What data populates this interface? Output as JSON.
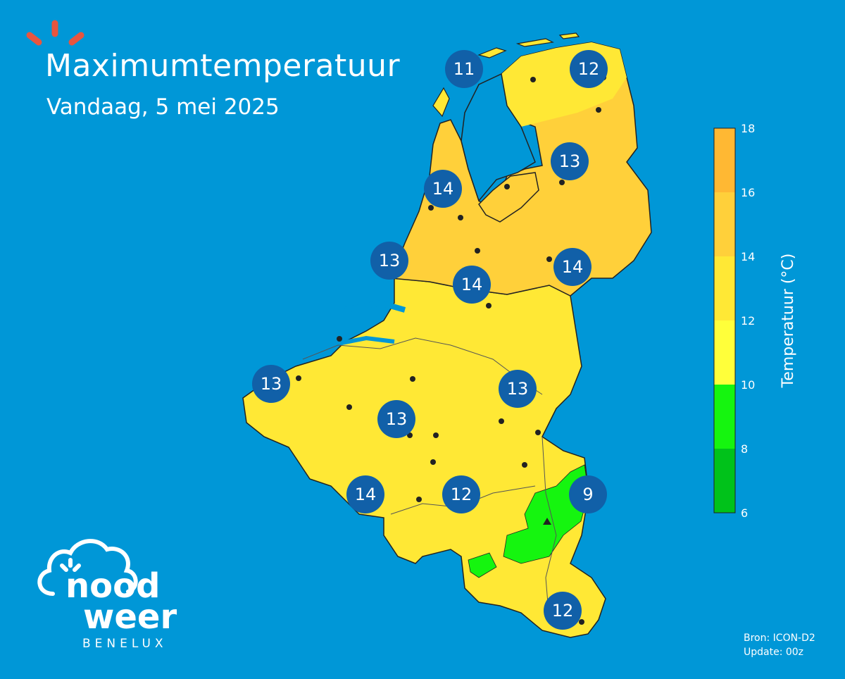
{
  "header": {
    "title": "Maximumtemperatuur",
    "subtitle": "Vandaag, 5 mei 2025"
  },
  "brand": {
    "name_line1": "nood",
    "name_line2": "weer",
    "region": "BENELUX",
    "accent_color": "#e8553f"
  },
  "source": {
    "line1": "Bron: ICON-D2",
    "line2": "Update: 00z"
  },
  "legend": {
    "title": "Temperatuur (°C)",
    "ticks": [
      "6",
      "8",
      "10",
      "12",
      "14",
      "16",
      "18"
    ],
    "bands": [
      {
        "from": 6,
        "to": 8,
        "color": "#00c21a"
      },
      {
        "from": 8,
        "to": 10,
        "color": "#15f50f"
      },
      {
        "from": 10,
        "to": 12,
        "color": "#ffff3a"
      },
      {
        "from": 12,
        "to": 14,
        "color": "#ffe835"
      },
      {
        "from": 14,
        "to": 16,
        "color": "#ffd03a"
      },
      {
        "from": 16,
        "to": 18,
        "color": "#ffb833"
      }
    ]
  },
  "map": {
    "water_color": "#0097d7",
    "marker_color": "#1160a8",
    "temperatures": [
      "11",
      "12",
      "13",
      "14",
      "13",
      "14",
      "14",
      "13",
      "13",
      "13",
      "14",
      "12",
      "9",
      "12"
    ]
  }
}
